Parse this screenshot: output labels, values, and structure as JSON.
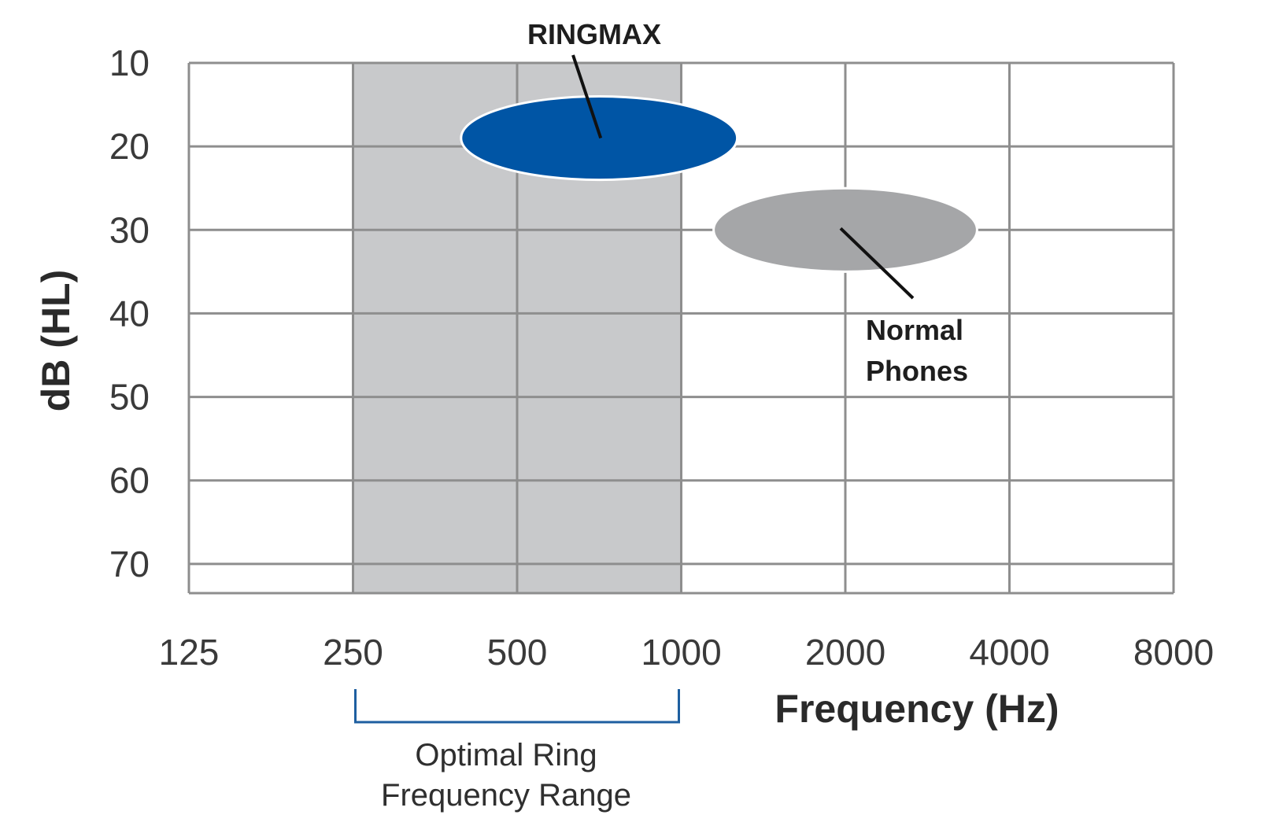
{
  "chart_data": {
    "type": "scatter",
    "xlabel": "Frequency (Hz)",
    "ylabel": "dB (HL)",
    "x_ticks": [
      "125",
      "250",
      "500",
      "1000",
      "2000",
      "4000",
      "8000"
    ],
    "x_scale": "log2",
    "y_ticks": [
      "10",
      "20",
      "30",
      "40",
      "50",
      "60",
      "70"
    ],
    "ylim": [
      10,
      73.5
    ],
    "y_inverted": true,
    "grid": true,
    "shaded_band": {
      "x_from": 250,
      "x_to": 1000,
      "label": "Optimal Ring Frequency Range",
      "label_lines": [
        "Optimal Ring",
        "Frequency Range"
      ],
      "color": "#c8c9cb"
    },
    "series": [
      {
        "name": "RINGMAX",
        "shape": "ellipse",
        "x_center": 707,
        "y_center": 19,
        "x_range": [
          405,
          1300
        ],
        "y_range": [
          14,
          24
        ],
        "color": "#0055a5"
      },
      {
        "name": "Normal Phones",
        "name_lines": [
          "Normal",
          "Phones"
        ],
        "shape": "ellipse",
        "x_center": 2000,
        "y_center": 30,
        "x_range": [
          1150,
          3500
        ],
        "y_range": [
          25,
          35
        ],
        "color": "#a5a6a8"
      }
    ]
  }
}
